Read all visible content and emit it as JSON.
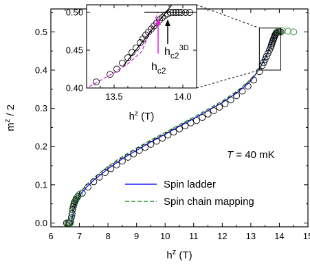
{
  "chart_data": [
    {
      "type": "scatter",
      "title": "",
      "xlabel": "h",
      "xlabel_sup": "z",
      "xlabel_unit": " (T)",
      "ylabel": "m",
      "ylabel_sup": "z",
      "ylabel_rest": " / 2",
      "xlim": [
        6,
        15
      ],
      "ylim": [
        -0.01,
        0.56
      ],
      "xticks": [
        "6",
        "7",
        "8",
        "9",
        "10",
        "11",
        "12",
        "13",
        "14",
        "15"
      ],
      "yticks": [
        "0.0",
        "0.1",
        "0.2",
        "0.3",
        "0.4",
        "0.5"
      ],
      "annotation": {
        "symbol": "T",
        "rest": " = 40 mK"
      },
      "legend_position": "lower-right",
      "series": [
        {
          "name": "Spin ladder",
          "kind": "line",
          "style": "solid",
          "color": "#1a1aff",
          "x": [
            6.7,
            6.74,
            6.78,
            6.82,
            6.86,
            6.9,
            7.0,
            7.2,
            7.5,
            8.0,
            8.5,
            9.0,
            9.5,
            10.0,
            10.5,
            11.0,
            11.5,
            12.0,
            12.5,
            12.8,
            13.0,
            13.2,
            13.4,
            13.5,
            13.6,
            13.7,
            13.78,
            13.84,
            13.9,
            14.0,
            14.1
          ],
          "y": [
            0.0,
            0.01,
            0.025,
            0.04,
            0.05,
            0.058,
            0.072,
            0.09,
            0.112,
            0.142,
            0.168,
            0.19,
            0.212,
            0.232,
            0.253,
            0.273,
            0.294,
            0.315,
            0.34,
            0.358,
            0.372,
            0.392,
            0.418,
            0.432,
            0.448,
            0.466,
            0.482,
            0.494,
            0.5,
            0.5,
            0.5
          ]
        },
        {
          "name": "Spin chain mapping",
          "kind": "line",
          "style": "dashed",
          "color": "#2e8b2e",
          "x": [
            6.72,
            6.76,
            6.8,
            6.85,
            6.9,
            7.0,
            7.2,
            7.5,
            8.0,
            8.5,
            9.0,
            9.5,
            10.0,
            10.5,
            11.0,
            11.5,
            12.0,
            12.5,
            13.0,
            13.3,
            13.5,
            13.7,
            13.85,
            13.95,
            14.1
          ],
          "y": [
            0.012,
            0.035,
            0.05,
            0.06,
            0.066,
            0.078,
            0.096,
            0.118,
            0.148,
            0.174,
            0.196,
            0.217,
            0.237,
            0.257,
            0.277,
            0.298,
            0.319,
            0.344,
            0.376,
            0.402,
            0.428,
            0.462,
            0.488,
            0.5,
            0.5
          ]
        },
        {
          "name": "data",
          "kind": "markers",
          "marker": "open-circle",
          "color": "#000000",
          "x": [
            6.55,
            6.6,
            6.65,
            6.68,
            6.7,
            6.72,
            6.74,
            6.76,
            6.78,
            6.8,
            6.82,
            6.84,
            6.86,
            6.88,
            6.9,
            6.95,
            7.1,
            7.3,
            7.5,
            7.7,
            7.9,
            8.1,
            8.3,
            8.5,
            8.7,
            8.9,
            9.1,
            9.3,
            9.5,
            9.7,
            9.9,
            10.1,
            10.3,
            10.5,
            10.7,
            10.9,
            11.1,
            11.3,
            11.5,
            11.7,
            11.9,
            12.1,
            12.3,
            12.5,
            12.7,
            12.9,
            13.1,
            13.3,
            13.4,
            13.45,
            13.5,
            13.55,
            13.6,
            13.65,
            13.7,
            13.72,
            13.74,
            13.76,
            13.78,
            13.8,
            13.82,
            13.84,
            13.86,
            13.88,
            13.9,
            13.93,
            13.96,
            14.0,
            14.05
          ],
          "y": [
            0.0,
            0.0,
            0.0,
            0.0,
            0.005,
            0.015,
            0.025,
            0.035,
            0.042,
            0.048,
            0.052,
            0.056,
            0.059,
            0.062,
            0.065,
            0.07,
            0.078,
            0.094,
            0.108,
            0.12,
            0.132,
            0.142,
            0.152,
            0.162,
            0.172,
            0.181,
            0.19,
            0.198,
            0.206,
            0.214,
            0.222,
            0.23,
            0.238,
            0.246,
            0.254,
            0.262,
            0.268,
            0.276,
            0.285,
            0.294,
            0.303,
            0.312,
            0.322,
            0.333,
            0.345,
            0.358,
            0.374,
            0.396,
            0.412,
            0.42,
            0.428,
            0.436,
            0.444,
            0.452,
            0.46,
            0.465,
            0.47,
            0.474,
            0.478,
            0.482,
            0.486,
            0.49,
            0.493,
            0.496,
            0.498,
            0.5,
            0.5,
            0.5,
            0.5
          ]
        },
        {
          "name": "green data",
          "kind": "markers",
          "marker": "open-circle",
          "color": "#2e8b2e",
          "x": [
            6.62,
            6.68,
            6.74,
            6.8,
            6.86,
            6.92,
            7.0,
            13.95,
            14.1,
            14.3,
            14.5
          ],
          "y": [
            0.0,
            0.0,
            0.02,
            0.045,
            0.058,
            0.066,
            0.075,
            0.5,
            0.503,
            0.502,
            0.5
          ]
        }
      ]
    },
    {
      "type": "scatter",
      "title": "",
      "xlabel": "h",
      "xlabel_sup": "z",
      "xlabel_unit": " (T)",
      "xlim": [
        13.3,
        14.1
      ],
      "ylim": [
        0.4,
        0.51
      ],
      "xticks": [
        "13.5",
        "14.0"
      ],
      "yticks": [
        "0.40",
        "0.45",
        "0.50"
      ],
      "xtick_values": [
        13.5,
        14.0
      ],
      "ytick_values": [
        0.4,
        0.45,
        0.5
      ],
      "xminor": [
        13.4,
        13.6,
        13.7,
        13.8,
        13.9,
        14.1
      ],
      "zoom_box": {
        "x": [
          13.3,
          14.05
        ],
        "y": [
          0.4,
          0.51
        ]
      },
      "labels": {
        "hc2": {
          "text": "h",
          "sub": "c2",
          "x": 13.82
        },
        "hc23d": {
          "text": "h",
          "sub": "c2",
          "sup": "3D",
          "x": 13.89
        }
      },
      "series": [
        {
          "name": "data",
          "kind": "markers",
          "marker": "open-circle",
          "color": "#000000",
          "x": [
            13.37,
            13.47,
            13.52,
            13.56,
            13.6,
            13.63,
            13.66,
            13.69,
            13.71,
            13.73,
            13.75,
            13.77,
            13.79,
            13.81,
            13.83,
            13.85,
            13.87,
            13.89,
            13.91,
            13.93,
            13.95,
            13.97,
            13.99,
            14.02,
            14.05
          ],
          "y": [
            0.408,
            0.418,
            0.425,
            0.433,
            0.44,
            0.447,
            0.453,
            0.46,
            0.465,
            0.47,
            0.474,
            0.478,
            0.482,
            0.486,
            0.49,
            0.493,
            0.496,
            0.498,
            0.5,
            0.5,
            0.5,
            0.5,
            0.5,
            0.5,
            0.5
          ]
        },
        {
          "name": "magenta fit",
          "kind": "line",
          "style": "dashed",
          "color": "#e020e0",
          "x": [
            13.32,
            13.4,
            13.5,
            13.6,
            13.7,
            13.82
          ],
          "y": [
            0.402,
            0.41,
            0.42,
            0.432,
            0.448,
            0.5
          ]
        },
        {
          "name": "linear fit",
          "kind": "line",
          "style": "solid",
          "color": "#000000",
          "x": [
            13.57,
            13.92
          ],
          "y": [
            0.43,
            0.51
          ]
        },
        {
          "name": "plateau",
          "kind": "line",
          "style": "solid",
          "color": "#000000",
          "x": [
            13.72,
            14.1
          ],
          "y": [
            0.5,
            0.5
          ]
        }
      ]
    }
  ],
  "legend": {
    "items": [
      {
        "label": "Spin ladder",
        "color": "#1a1aff",
        "style": "solid"
      },
      {
        "label": "Spin chain mapping",
        "color": "#2e8b2e",
        "style": "dashed"
      }
    ]
  }
}
